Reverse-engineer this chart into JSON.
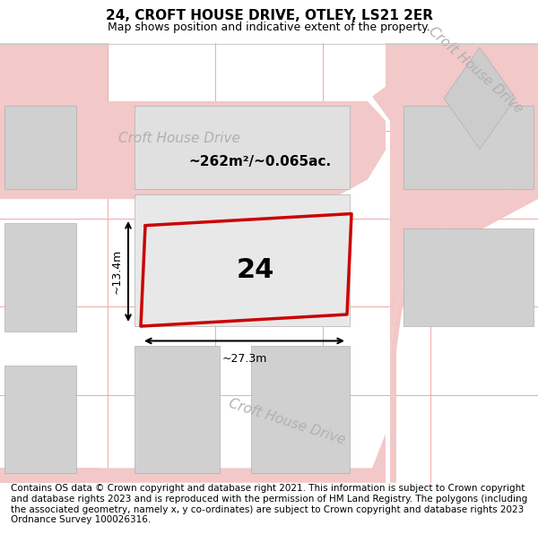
{
  "title": "24, CROFT HOUSE DRIVE, OTLEY, LS21 2ER",
  "subtitle": "Map shows position and indicative extent of the property.",
  "footer": "Contains OS data © Crown copyright and database right 2021. This information is subject to Crown copyright and database rights 2023 and is reproduced with the permission of HM Land Registry. The polygons (including the associated geometry, namely x, y co-ordinates) are subject to Crown copyright and database rights 2023 Ordnance Survey 100026316.",
  "title_fontsize": 11,
  "subtitle_fontsize": 9,
  "footer_fontsize": 7.5,
  "road_label_1": "Croft House Drive",
  "road_label_2": "Croft House Drive",
  "road_label_3": "Croft House Drive",
  "property_number": "24",
  "area_label": "~262m²/~0.065ac.",
  "width_label": "~27.3m",
  "height_label": "~13.4m",
  "red_outline_color": "#cc0000",
  "road_color": "#f2c8c8",
  "building_color": "#d0d0d0",
  "building_outline": "#b0b0b0",
  "road_label_color": "#b0b0b0",
  "grid_line_color": "#f0a8a8",
  "map_border_color": "#cccccc"
}
